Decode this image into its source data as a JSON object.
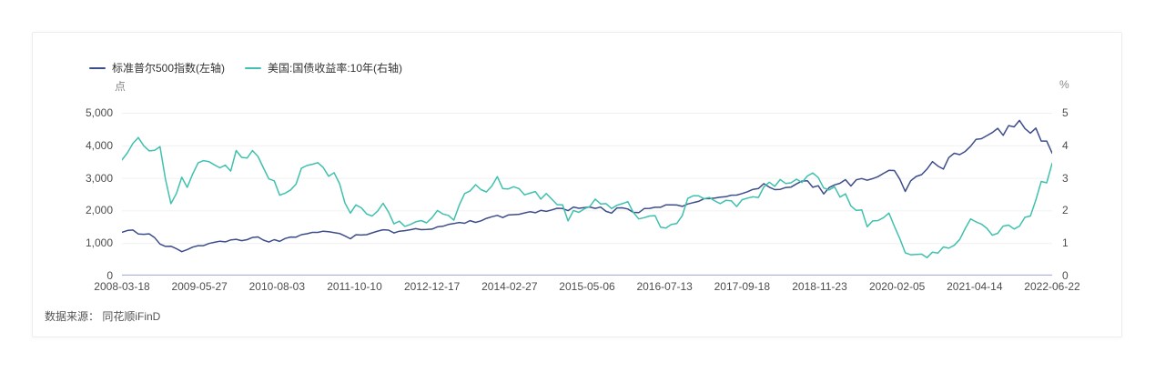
{
  "source_note": "数据来源： 同花顺iFinD",
  "chart_data": {
    "type": "line",
    "title": "",
    "legend_position": "top-left",
    "grid": true,
    "grid_color": "#f0f0f0",
    "axis_line_color": "#a9b0d4",
    "left_axis": {
      "unit": "点",
      "min": 0,
      "max": 5000,
      "ticks": [
        "5,000",
        "4,000",
        "3,000",
        "2,000",
        "1,000",
        "0"
      ]
    },
    "right_axis": {
      "unit": "%",
      "min": 0,
      "max": 5,
      "ticks": [
        "5",
        "4",
        "3",
        "2",
        "1",
        "0"
      ]
    },
    "x_tick_labels": [
      "2008-03-18",
      "2009-05-27",
      "2010-08-03",
      "2011-10-10",
      "2012-12-17",
      "2014-02-27",
      "2015-05-06",
      "2016-07-13",
      "2017-09-18",
      "2018-11-23",
      "2020-02-05",
      "2021-04-14",
      "2022-06-22"
    ],
    "x_range": {
      "start": "2008-03",
      "end": "2022-06",
      "frequency": "monthly"
    },
    "series": [
      {
        "name": "标准普尔500指数(左轴)",
        "axis": "left",
        "color": "#3d4d8a",
        "values": [
          1330,
          1386,
          1400,
          1280,
          1267,
          1283,
          1166,
          969,
          896,
          903,
          826,
          735,
          798,
          873,
          919,
          919,
          987,
          1021,
          1057,
          1036,
          1096,
          1115,
          1074,
          1104,
          1169,
          1187,
          1089,
          1031,
          1102,
          1049,
          1141,
          1183,
          1181,
          1258,
          1286,
          1327,
          1326,
          1364,
          1345,
          1321,
          1292,
          1219,
          1131,
          1253,
          1247,
          1258,
          1312,
          1366,
          1408,
          1398,
          1310,
          1362,
          1379,
          1407,
          1441,
          1412,
          1416,
          1426,
          1498,
          1515,
          1569,
          1598,
          1631,
          1606,
          1686,
          1633,
          1682,
          1757,
          1806,
          1848,
          1783,
          1859,
          1872,
          1884,
          1924,
          1960,
          1931,
          2003,
          1972,
          2018,
          2068,
          2059,
          1995,
          2105,
          2068,
          2086,
          2107,
          2063,
          2104,
          1972,
          1920,
          2079,
          2080,
          2044,
          1940,
          1932,
          2060,
          2065,
          2097,
          2099,
          2174,
          2171,
          2168,
          2126,
          2199,
          2239,
          2279,
          2364,
          2363,
          2384,
          2412,
          2423,
          2470,
          2472,
          2519,
          2575,
          2648,
          2674,
          2824,
          2714,
          2641,
          2648,
          2705,
          2718,
          2816,
          2902,
          2914,
          2712,
          2760,
          2507,
          2704,
          2784,
          2834,
          2946,
          2752,
          2942,
          2980,
          2926,
          2977,
          3038,
          3141,
          3231,
          3226,
          2954,
          2585,
          2912,
          3044,
          3100,
          3271,
          3500,
          3363,
          3270,
          3622,
          3756,
          3714,
          3811,
          3973,
          4181,
          4204,
          4298,
          4395,
          4523,
          4308,
          4605,
          4567,
          4766,
          4516,
          4374,
          4530,
          4132,
          4132,
          3760
        ]
      },
      {
        "name": "美国:国债收益率:10年(右轴)",
        "axis": "right",
        "color": "#3fc1ae",
        "values": [
          3.55,
          3.77,
          4.06,
          4.24,
          3.99,
          3.83,
          3.85,
          3.96,
          2.96,
          2.21,
          2.52,
          3.02,
          2.71,
          3.12,
          3.46,
          3.53,
          3.5,
          3.4,
          3.31,
          3.39,
          3.21,
          3.84,
          3.63,
          3.61,
          3.84,
          3.66,
          3.31,
          2.97,
          2.91,
          2.47,
          2.53,
          2.63,
          2.81,
          3.3,
          3.38,
          3.42,
          3.47,
          3.32,
          3.05,
          3.16,
          2.82,
          2.23,
          1.92,
          2.17,
          2.08,
          1.89,
          1.83,
          1.98,
          2.22,
          1.95,
          1.59,
          1.67,
          1.51,
          1.57,
          1.65,
          1.69,
          1.62,
          1.78,
          2.0,
          1.89,
          1.85,
          1.7,
          2.16,
          2.52,
          2.6,
          2.79,
          2.64,
          2.57,
          2.75,
          3.04,
          2.67,
          2.66,
          2.73,
          2.67,
          2.48,
          2.53,
          2.58,
          2.35,
          2.52,
          2.35,
          2.18,
          2.17,
          1.68,
          2.0,
          1.94,
          2.05,
          2.12,
          2.35,
          2.2,
          2.21,
          2.06,
          2.16,
          2.21,
          2.27,
          1.94,
          1.74,
          1.78,
          1.83,
          1.84,
          1.49,
          1.46,
          1.57,
          1.6,
          1.84,
          2.37,
          2.45,
          2.45,
          2.36,
          2.4,
          2.29,
          2.21,
          2.31,
          2.3,
          2.12,
          2.33,
          2.38,
          2.42,
          2.4,
          2.72,
          2.87,
          2.74,
          2.95,
          2.83,
          2.85,
          2.96,
          2.86,
          3.06,
          3.15,
          3.01,
          2.69,
          2.63,
          2.73,
          2.41,
          2.51,
          2.14,
          2.0,
          2.02,
          1.5,
          1.68,
          1.69,
          1.78,
          1.92,
          1.51,
          1.13,
          0.7,
          0.64,
          0.65,
          0.66,
          0.55,
          0.72,
          0.69,
          0.88,
          0.84,
          0.93,
          1.11,
          1.44,
          1.74,
          1.65,
          1.58,
          1.45,
          1.24,
          1.3,
          1.52,
          1.55,
          1.43,
          1.52,
          1.79,
          1.83,
          2.32,
          2.89,
          2.85,
          3.45
        ]
      }
    ]
  }
}
